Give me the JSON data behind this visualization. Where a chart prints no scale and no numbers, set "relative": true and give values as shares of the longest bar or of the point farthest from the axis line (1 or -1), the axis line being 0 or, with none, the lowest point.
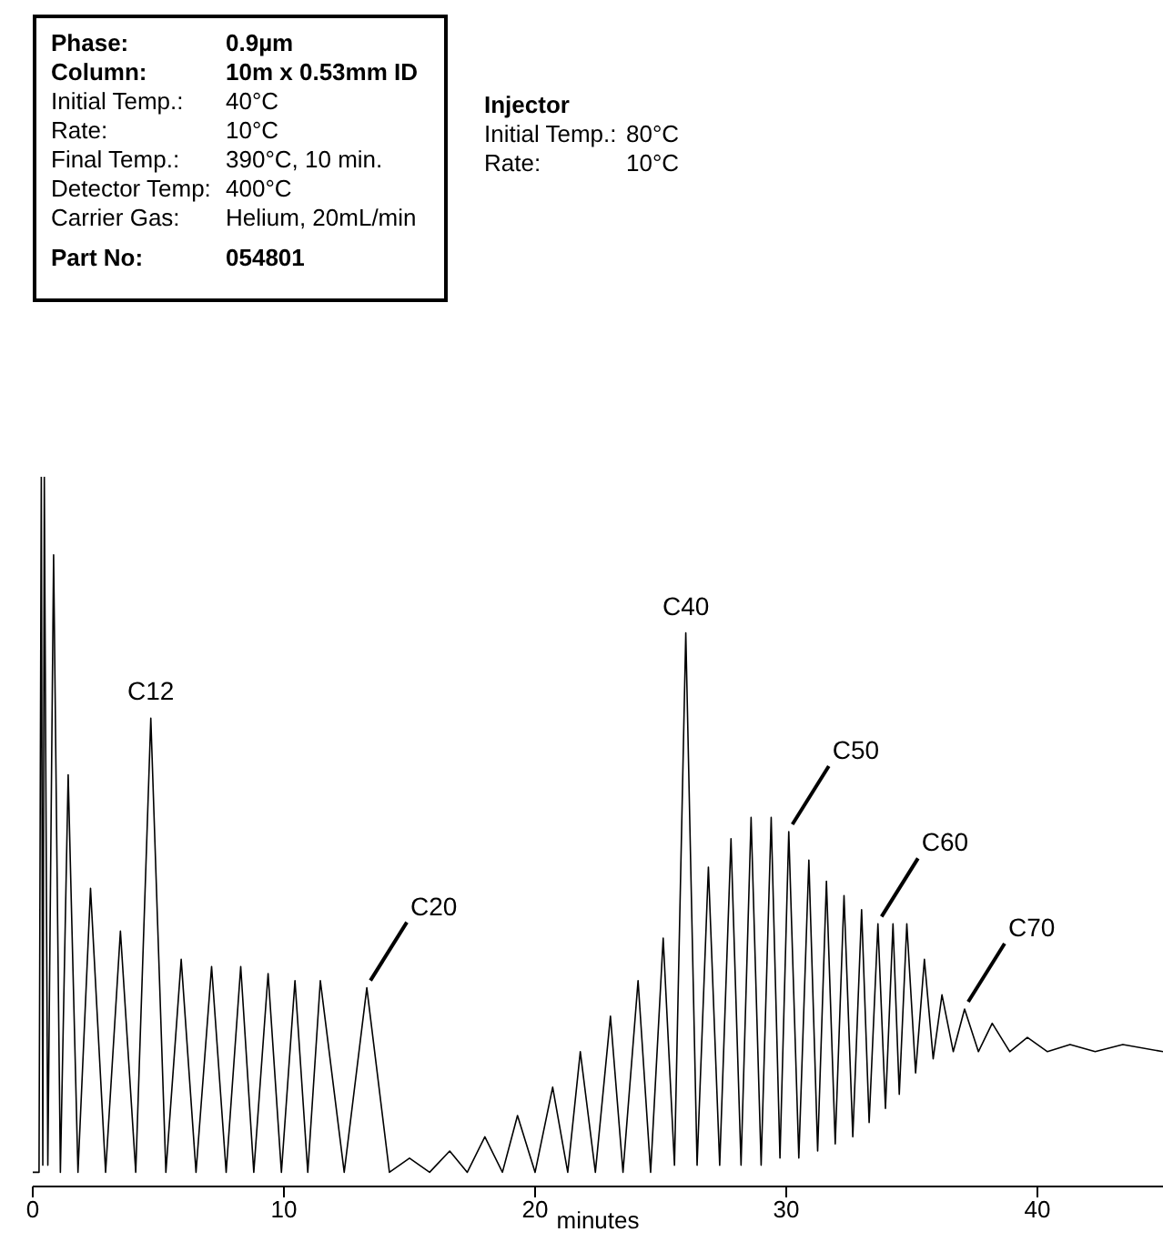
{
  "chart_data": {
    "type": "line",
    "relative": true,
    "xlabel": "minutes",
    "xlim": [
      0,
      45
    ],
    "xticks": [
      0,
      10,
      20,
      30,
      40
    ],
    "annotations": [
      "Phase:\t0.9µm\nColumn:\t10m x 0.53mm ID\nInitial Temp.:\t40°C\nRate:\t10°C\nFinal Temp.:\t390°C, 10 min.\nDetector Temp:\t400°C\nCarrier Gas:\tHelium, 20mL/min\nPart No:\t054801",
      "Injector\nInitial Temp.:\t80°C\nRate:\t10°C",
      {
        "text": "C12",
        "x": 4.7,
        "y": 0.66
      },
      {
        "text": "C20",
        "x": 13.3,
        "y": 0.28
      },
      {
        "text": "C40",
        "x": 26.0,
        "y": 0.78
      },
      {
        "text": "C50",
        "x": 30.1,
        "y": 0.5
      },
      {
        "text": "C60",
        "x": 33.65,
        "y": 0.37
      },
      {
        "text": "C70",
        "x": 37.1,
        "y": 0.25
      }
    ],
    "series": [
      {
        "color": "#000000",
        "x": [
          0,
          0.25,
          0.34,
          0.4,
          0.46,
          0.6,
          0.83,
          1.1,
          1.41,
          1.8,
          2.3,
          2.9,
          3.49,
          4.1,
          4.7,
          5.3,
          5.91,
          6.5,
          7.12,
          7.7,
          8.28,
          8.8,
          9.37,
          9.9,
          10.44,
          10.95,
          11.45,
          12.4,
          13.3,
          14.2,
          15.0,
          15.8,
          16.6,
          17.3,
          18.0,
          18.7,
          19.3,
          20.0,
          20.7,
          21.3,
          21.8,
          22.4,
          23.0,
          23.5,
          24.1,
          24.6,
          25.1,
          25.55,
          26.0,
          26.45,
          26.9,
          27.35,
          27.8,
          28.2,
          28.6,
          29.0,
          29.4,
          29.75,
          30.1,
          30.5,
          30.9,
          31.25,
          31.6,
          31.95,
          32.3,
          32.65,
          33.0,
          33.3,
          33.65,
          33.95,
          34.25,
          34.5,
          34.8,
          35.15,
          35.5,
          35.85,
          36.2,
          36.65,
          37.1,
          37.65,
          38.2,
          38.9,
          39.6,
          40.4,
          41.3,
          42.3,
          43.4,
          45
        ],
        "values": [
          0.02,
          0.02,
          1,
          0.03,
          1,
          0.03,
          0.89,
          0.02,
          0.58,
          0.02,
          0.42,
          0.02,
          0.36,
          0.02,
          0.66,
          0.02,
          0.32,
          0.02,
          0.31,
          0.02,
          0.31,
          0.02,
          0.3,
          0.02,
          0.29,
          0.02,
          0.29,
          0.02,
          0.28,
          0.02,
          0.04,
          0.02,
          0.05,
          0.02,
          0.07,
          0.02,
          0.1,
          0.02,
          0.14,
          0.02,
          0.19,
          0.02,
          0.24,
          0.02,
          0.29,
          0.02,
          0.35,
          0.03,
          0.78,
          0.03,
          0.45,
          0.03,
          0.49,
          0.03,
          0.52,
          0.03,
          0.52,
          0.04,
          0.5,
          0.04,
          0.46,
          0.05,
          0.43,
          0.06,
          0.41,
          0.07,
          0.39,
          0.09,
          0.37,
          0.11,
          0.37,
          0.13,
          0.37,
          0.16,
          0.32,
          0.18,
          0.27,
          0.19,
          0.25,
          0.19,
          0.23,
          0.19,
          0.21,
          0.19,
          0.2,
          0.19,
          0.2,
          0.19
        ]
      }
    ]
  }
}
